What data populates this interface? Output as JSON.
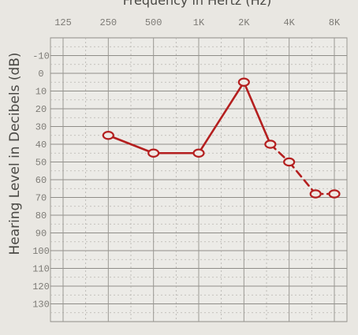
{
  "chart_data": {
    "type": "line",
    "title": "Frequency in Hertz (Hz)",
    "xlabel": "Frequency in Hertz (Hz)",
    "ylabel": "Hearing Level in Decibels (dB)",
    "x_ticks": [
      "125",
      "250",
      "500",
      "1K",
      "2K",
      "4K",
      "8K"
    ],
    "y_ticks": [
      "-10",
      "0",
      "10",
      "20",
      "30",
      "40",
      "50",
      "60",
      "70",
      "80",
      "90",
      "100",
      "110",
      "120",
      "130"
    ],
    "ylim": [
      -20,
      140
    ],
    "y_inverted": true,
    "grid": true,
    "series": [
      {
        "x": [
          "250",
          "500",
          "1K",
          "2K",
          "3K",
          "4K",
          "6K",
          "8K"
        ],
        "values": [
          35,
          45,
          45,
          5,
          40,
          50,
          68,
          68
        ],
        "color": "#b41f1f"
      }
    ]
  }
}
